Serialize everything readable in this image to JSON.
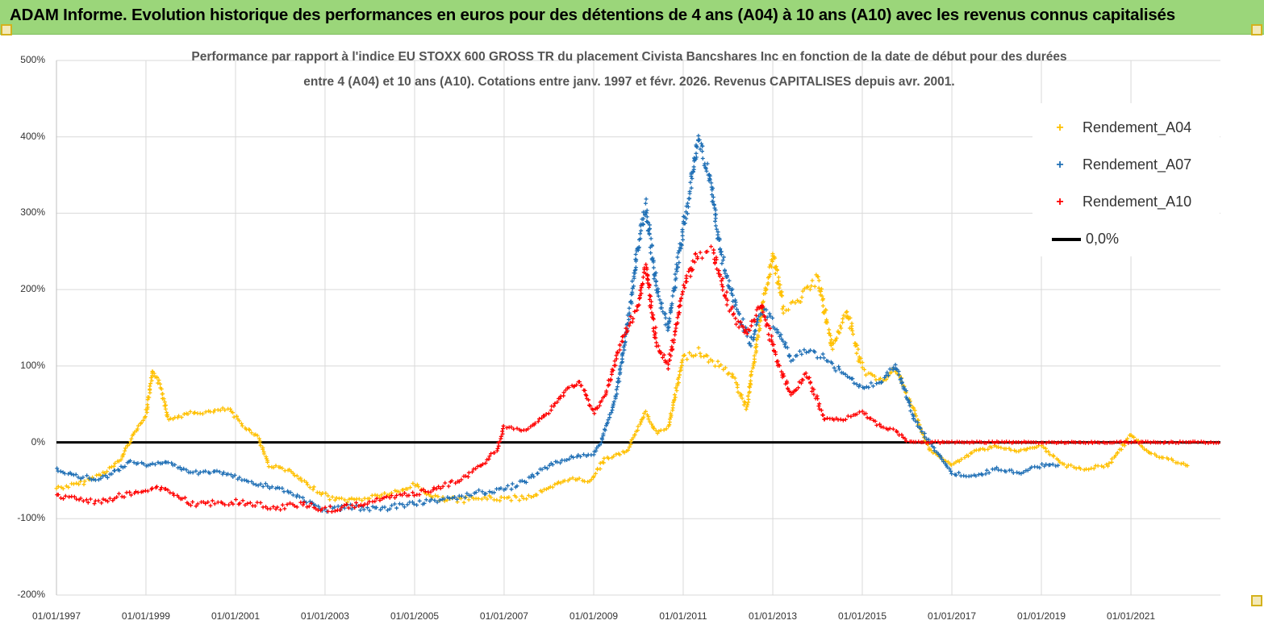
{
  "header": {
    "title": "ADAM Informe. Evolution historique des performances en euros pour des détentions de 4 ans (A04) à 10 ans (A10) avec les revenus connus capitalisés"
  },
  "chart_data": {
    "type": "scatter",
    "title_line1": "Performance par rapport à l'indice EU STOXX 600 GROSS TR  du placement Civista Bancshares Inc en fonction de la date de début pour des durées",
    "title_line2": "entre 4 (A04) et 10 ans (A10).  Cotations entre janv. 1997 et févr. 2026. Revenus CAPITALISES depuis avr. 2001.",
    "ylim": [
      -200,
      500
    ],
    "xlim": [
      "1997-01-01",
      "2023-01-01"
    ],
    "y_ticks": [
      "500%",
      "400%",
      "300%",
      "200%",
      "100%",
      "0%",
      "-100%",
      "-200%"
    ],
    "x_ticks": [
      "01/01/1997",
      "01/01/1999",
      "01/01/2001",
      "01/01/2003",
      "01/01/2005",
      "01/01/2007",
      "01/01/2009",
      "01/01/2011",
      "01/01/2013",
      "01/01/2015",
      "01/01/2017",
      "01/01/2019",
      "01/01/2021"
    ],
    "grid": true,
    "legend_position": "top-right",
    "reference_line": {
      "name": "0,0%",
      "y": 0,
      "color": "#000000"
    },
    "series": [
      {
        "name": "Rendement_A04",
        "color": "#ffc000",
        "points": [
          [
            "1997-01-01",
            -60
          ],
          [
            "1997-07-01",
            -55
          ],
          [
            "1998-01-01",
            -42
          ],
          [
            "1998-06-01",
            -25
          ],
          [
            "1998-09-01",
            5
          ],
          [
            "1999-01-01",
            35
          ],
          [
            "1999-03-01",
            95
          ],
          [
            "1999-05-01",
            75
          ],
          [
            "1999-07-01",
            30
          ],
          [
            "2000-01-01",
            38
          ],
          [
            "2000-07-01",
            40
          ],
          [
            "2000-11-01",
            44
          ],
          [
            "2001-03-01",
            22
          ],
          [
            "2001-07-01",
            8
          ],
          [
            "2001-10-01",
            -30
          ],
          [
            "2002-03-01",
            -36
          ],
          [
            "2002-09-01",
            -58
          ],
          [
            "2003-03-01",
            -74
          ],
          [
            "2003-09-01",
            -76
          ],
          [
            "2004-03-01",
            -70
          ],
          [
            "2004-09-01",
            -65
          ],
          [
            "2005-01-01",
            -55
          ],
          [
            "2005-06-01",
            -72
          ],
          [
            "2006-01-01",
            -76
          ],
          [
            "2006-07-01",
            -73
          ],
          [
            "2007-01-01",
            -74
          ],
          [
            "2007-07-01",
            -72
          ],
          [
            "2008-01-01",
            -62
          ],
          [
            "2008-06-01",
            -48
          ],
          [
            "2008-12-01",
            -50
          ],
          [
            "2009-04-01",
            -22
          ],
          [
            "2009-10-01",
            -12
          ],
          [
            "2010-03-01",
            40
          ],
          [
            "2010-06-01",
            12
          ],
          [
            "2010-09-01",
            20
          ],
          [
            "2011-01-01",
            110
          ],
          [
            "2011-05-01",
            120
          ],
          [
            "2011-09-01",
            105
          ],
          [
            "2012-02-01",
            90
          ],
          [
            "2012-06-01",
            45
          ],
          [
            "2012-10-01",
            170
          ],
          [
            "2013-01-01",
            245
          ],
          [
            "2013-04-01",
            175
          ],
          [
            "2013-08-01",
            185
          ],
          [
            "2014-01-01",
            215
          ],
          [
            "2014-05-01",
            125
          ],
          [
            "2014-09-01",
            170
          ],
          [
            "2015-01-01",
            95
          ],
          [
            "2015-06-01",
            80
          ],
          [
            "2015-10-01",
            95
          ],
          [
            "2016-03-01",
            40
          ],
          [
            "2016-07-01",
            -10
          ],
          [
            "2017-01-01",
            -30
          ],
          [
            "2017-07-01",
            -12
          ],
          [
            "2018-01-01",
            -5
          ],
          [
            "2018-07-01",
            -12
          ],
          [
            "2019-01-01",
            -5
          ],
          [
            "2019-07-01",
            -30
          ],
          [
            "2020-01-01",
            -35
          ],
          [
            "2020-07-01",
            -30
          ],
          [
            "2021-01-01",
            10
          ],
          [
            "2021-06-01",
            -15
          ],
          [
            "2022-01-01",
            -25
          ],
          [
            "2022-05-01",
            -30
          ]
        ]
      },
      {
        "name": "Rendement_A07",
        "color": "#1f6fb5",
        "points": [
          [
            "1997-01-01",
            -35
          ],
          [
            "1997-07-01",
            -45
          ],
          [
            "1998-01-01",
            -48
          ],
          [
            "1998-06-01",
            -35
          ],
          [
            "1998-09-01",
            -25
          ],
          [
            "1999-01-01",
            -30
          ],
          [
            "1999-06-01",
            -25
          ],
          [
            "2000-01-01",
            -40
          ],
          [
            "2000-07-01",
            -38
          ],
          [
            "2001-01-01",
            -45
          ],
          [
            "2001-07-01",
            -55
          ],
          [
            "2002-01-01",
            -60
          ],
          [
            "2002-07-01",
            -75
          ],
          [
            "2003-01-01",
            -88
          ],
          [
            "2003-07-01",
            -85
          ],
          [
            "2004-01-01",
            -88
          ],
          [
            "2004-07-01",
            -85
          ],
          [
            "2005-01-01",
            -80
          ],
          [
            "2005-07-01",
            -75
          ],
          [
            "2006-01-01",
            -72
          ],
          [
            "2006-07-01",
            -65
          ],
          [
            "2007-01-01",
            -62
          ],
          [
            "2007-07-01",
            -50
          ],
          [
            "2008-01-01",
            -30
          ],
          [
            "2008-07-01",
            -20
          ],
          [
            "2009-01-01",
            -15
          ],
          [
            "2009-03-01",
            0
          ],
          [
            "2009-07-01",
            60
          ],
          [
            "2009-10-01",
            150
          ],
          [
            "2010-01-01",
            260
          ],
          [
            "2010-03-01",
            310
          ],
          [
            "2010-06-01",
            200
          ],
          [
            "2010-09-01",
            150
          ],
          [
            "2011-01-01",
            280
          ],
          [
            "2011-03-01",
            330
          ],
          [
            "2011-05-01",
            400
          ],
          [
            "2011-08-01",
            350
          ],
          [
            "2011-11-01",
            250
          ],
          [
            "2012-03-01",
            180
          ],
          [
            "2012-07-01",
            130
          ],
          [
            "2012-10-01",
            175
          ],
          [
            "2013-02-01",
            150
          ],
          [
            "2013-06-01",
            110
          ],
          [
            "2013-10-01",
            120
          ],
          [
            "2014-03-01",
            110
          ],
          [
            "2014-08-01",
            90
          ],
          [
            "2015-01-01",
            70
          ],
          [
            "2015-06-01",
            80
          ],
          [
            "2015-10-01",
            100
          ],
          [
            "2016-03-01",
            30
          ],
          [
            "2016-07-01",
            0
          ],
          [
            "2017-01-01",
            -40
          ],
          [
            "2017-07-01",
            -45
          ],
          [
            "2018-01-01",
            -35
          ],
          [
            "2018-07-01",
            -40
          ],
          [
            "2019-01-01",
            -30
          ],
          [
            "2019-06-01",
            -30
          ]
        ]
      },
      {
        "name": "Rendement_A10",
        "color": "#ff0000",
        "points": [
          [
            "1997-01-01",
            -70
          ],
          [
            "1997-07-01",
            -75
          ],
          [
            "1998-01-01",
            -78
          ],
          [
            "1998-06-01",
            -70
          ],
          [
            "1999-01-01",
            -62
          ],
          [
            "1999-06-01",
            -60
          ],
          [
            "2000-01-01",
            -80
          ],
          [
            "2000-07-01",
            -80
          ],
          [
            "2001-01-01",
            -78
          ],
          [
            "2001-07-01",
            -82
          ],
          [
            "2002-01-01",
            -85
          ],
          [
            "2002-07-01",
            -80
          ],
          [
            "2003-01-01",
            -88
          ],
          [
            "2003-07-01",
            -85
          ],
          [
            "2004-01-01",
            -78
          ],
          [
            "2004-07-01",
            -72
          ],
          [
            "2005-01-01",
            -68
          ],
          [
            "2005-07-01",
            -60
          ],
          [
            "2006-01-01",
            -50
          ],
          [
            "2006-07-01",
            -30
          ],
          [
            "2006-11-01",
            -10
          ],
          [
            "2007-01-01",
            20
          ],
          [
            "2007-07-01",
            15
          ],
          [
            "2008-01-01",
            40
          ],
          [
            "2008-06-01",
            70
          ],
          [
            "2008-09-01",
            80
          ],
          [
            "2009-01-01",
            40
          ],
          [
            "2009-04-01",
            60
          ],
          [
            "2009-09-01",
            140
          ],
          [
            "2010-01-01",
            180
          ],
          [
            "2010-03-01",
            230
          ],
          [
            "2010-06-01",
            130
          ],
          [
            "2010-09-01",
            100
          ],
          [
            "2011-01-01",
            200
          ],
          [
            "2011-05-01",
            250
          ],
          [
            "2011-09-01",
            250
          ],
          [
            "2012-01-01",
            180
          ],
          [
            "2012-06-01",
            140
          ],
          [
            "2012-10-01",
            180
          ],
          [
            "2013-02-01",
            110
          ],
          [
            "2013-06-01",
            60
          ],
          [
            "2013-10-01",
            90
          ],
          [
            "2014-03-01",
            30
          ],
          [
            "2014-08-01",
            30
          ],
          [
            "2015-01-01",
            40
          ],
          [
            "2015-06-01",
            20
          ],
          [
            "2015-10-01",
            15
          ],
          [
            "2016-01-01",
            2
          ],
          [
            "2016-06-01",
            0
          ],
          [
            "2017-01-01",
            0
          ],
          [
            "2018-01-01",
            0
          ],
          [
            "2019-01-01",
            0
          ],
          [
            "2020-01-01",
            0
          ],
          [
            "2021-01-01",
            0
          ],
          [
            "2022-01-01",
            0
          ],
          [
            "2023-01-01",
            0
          ]
        ]
      }
    ]
  }
}
